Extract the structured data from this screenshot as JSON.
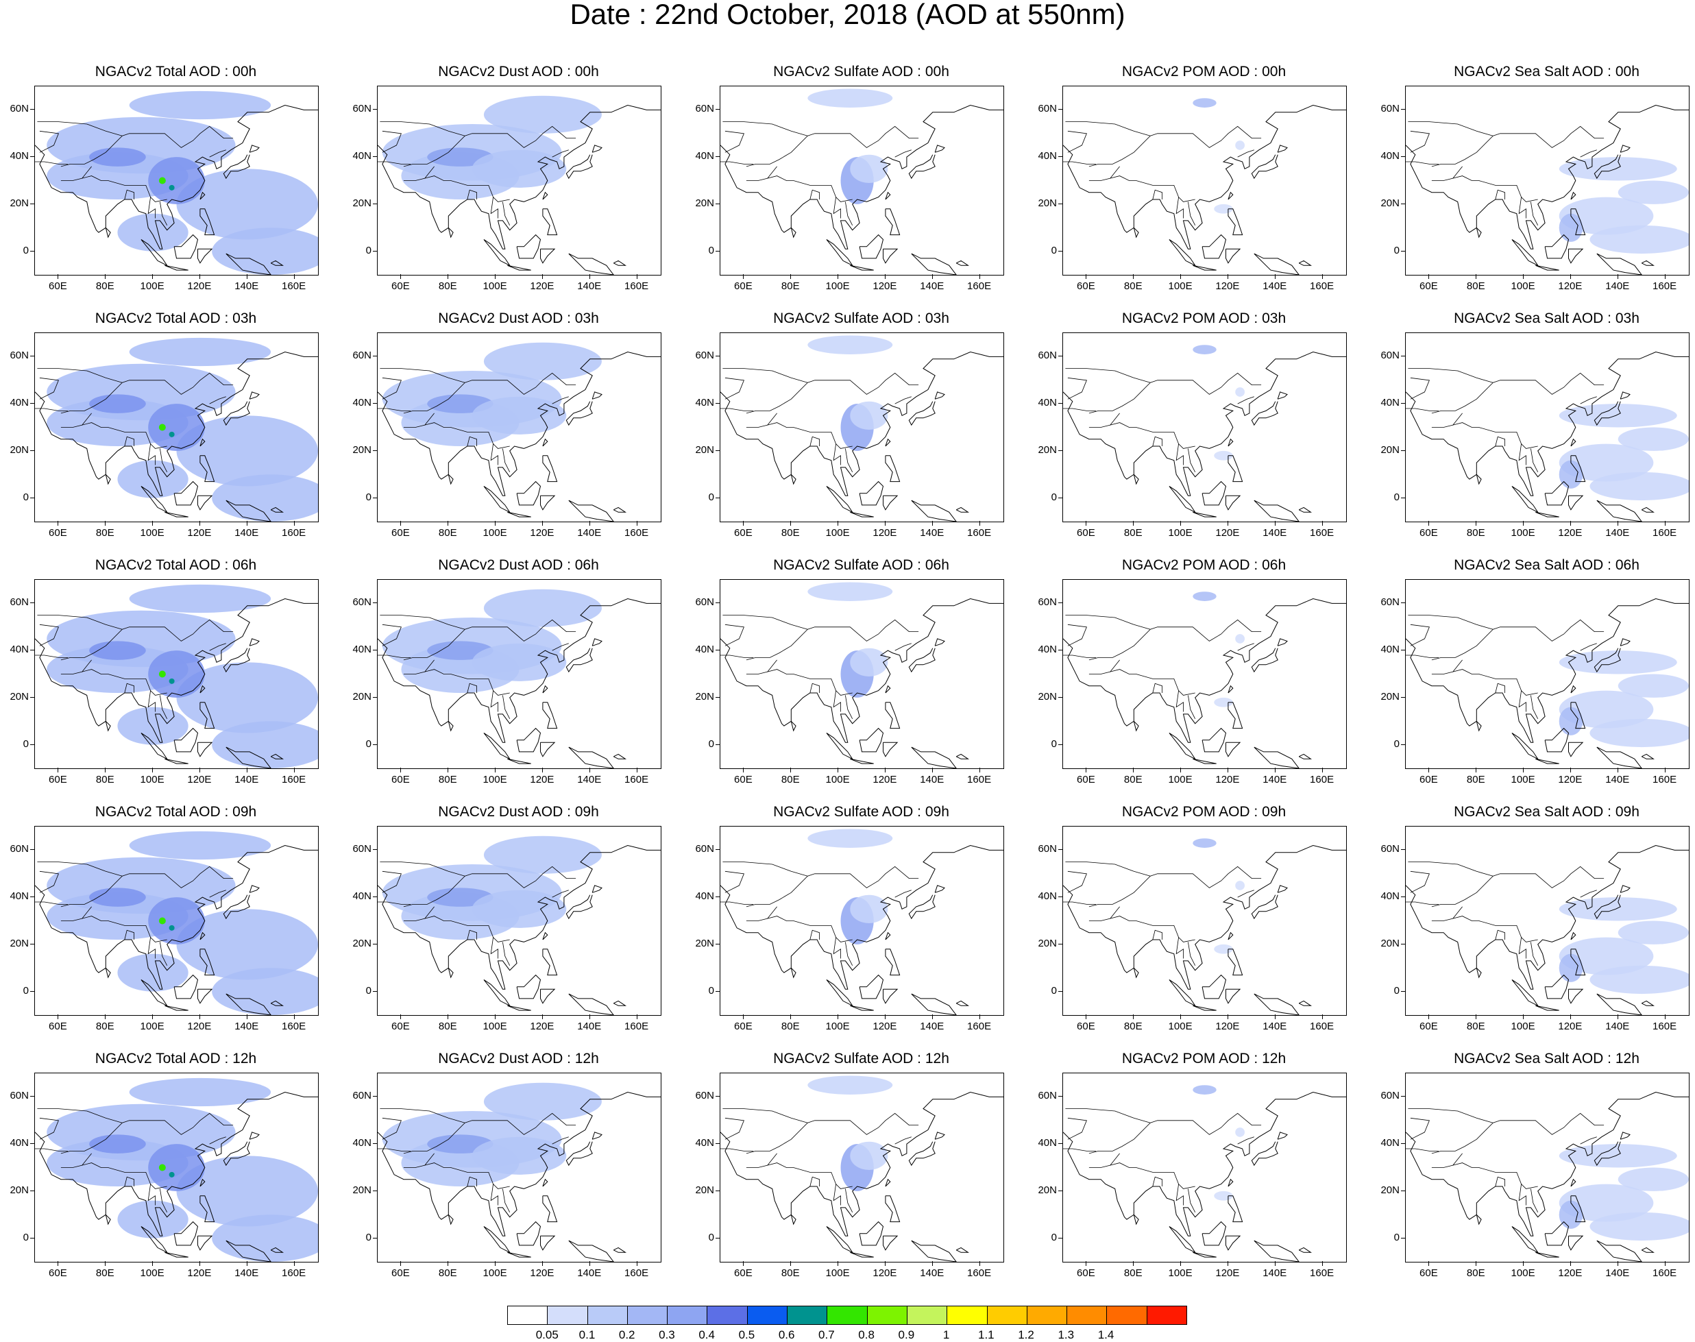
{
  "title": "Date : 22nd October, 2018 (AOD at 550nm)",
  "columns": [
    {
      "product": "Total",
      "fill": "#a9bdf7",
      "core": "#7b93ee"
    },
    {
      "product": "Dust",
      "fill": "#b3c6f8",
      "core": "#8aa1f0"
    },
    {
      "product": "Sulfate",
      "fill": "#c7d5fa",
      "core": "#8fa6f2"
    },
    {
      "product": "POM",
      "fill": "#d4defb",
      "core": "#a8bbf6"
    },
    {
      "product": "Sea Salt",
      "fill": "#c9d6fa",
      "core": "#a9bcf6"
    }
  ],
  "panels": [
    [
      "NGACv2 Total AOD : 00h",
      "NGACv2 Dust AOD : 00h",
      "NGACv2 Sulfate AOD : 00h",
      "NGACv2 POM AOD : 00h",
      "NGACv2 Sea Salt AOD : 00h"
    ],
    [
      "NGACv2 Total AOD : 03h",
      "NGACv2 Dust AOD : 03h",
      "NGACv2 Sulfate AOD : 03h",
      "NGACv2 POM AOD : 03h",
      "NGACv2 Sea Salt AOD : 03h"
    ],
    [
      "NGACv2 Total AOD : 06h",
      "NGACv2 Dust AOD : 06h",
      "NGACv2 Sulfate AOD : 06h",
      "NGACv2 POM AOD : 06h",
      "NGACv2 Sea Salt AOD : 06h"
    ],
    [
      "NGACv2 Total AOD : 09h",
      "NGACv2 Dust AOD : 09h",
      "NGACv2 Sulfate AOD : 09h",
      "NGACv2 POM AOD : 09h",
      "NGACv2 Sea Salt  AOD : 09h"
    ],
    [
      "NGACv2 Total AOD  : 12h",
      "NGACv2 Dust AOD : 12h",
      "NGACv2 Sulfate AOD : 12h",
      "NGACv2 POM  AOD : 12h",
      "NGACv2 Sea Salt  AOD : 12h"
    ]
  ],
  "lat_labels": [
    "60N",
    "40N",
    "20N",
    "0"
  ],
  "lon_labels": [
    "60E",
    "80E",
    "100E",
    "120E",
    "140E",
    "160E"
  ],
  "colorbar": {
    "colors": [
      "#ffffff",
      "#d4defb",
      "#b9cbf8",
      "#a3b7f5",
      "#8ea5f2",
      "#5c6fe6",
      "#0a5cf0",
      "#00938f",
      "#33e600",
      "#7df300",
      "#c4f45c",
      "#ffff00",
      "#ffcc00",
      "#ffaa00",
      "#ff8c00",
      "#ff6a00",
      "#ff1a00"
    ],
    "labels": [
      "0.05",
      "0.1",
      "0.2",
      "0.3",
      "0.4",
      "0.5",
      "0.6",
      "0.7",
      "0.8",
      "0.9",
      "1",
      "1.1",
      "1.2",
      "1.3",
      "1.4"
    ]
  }
}
